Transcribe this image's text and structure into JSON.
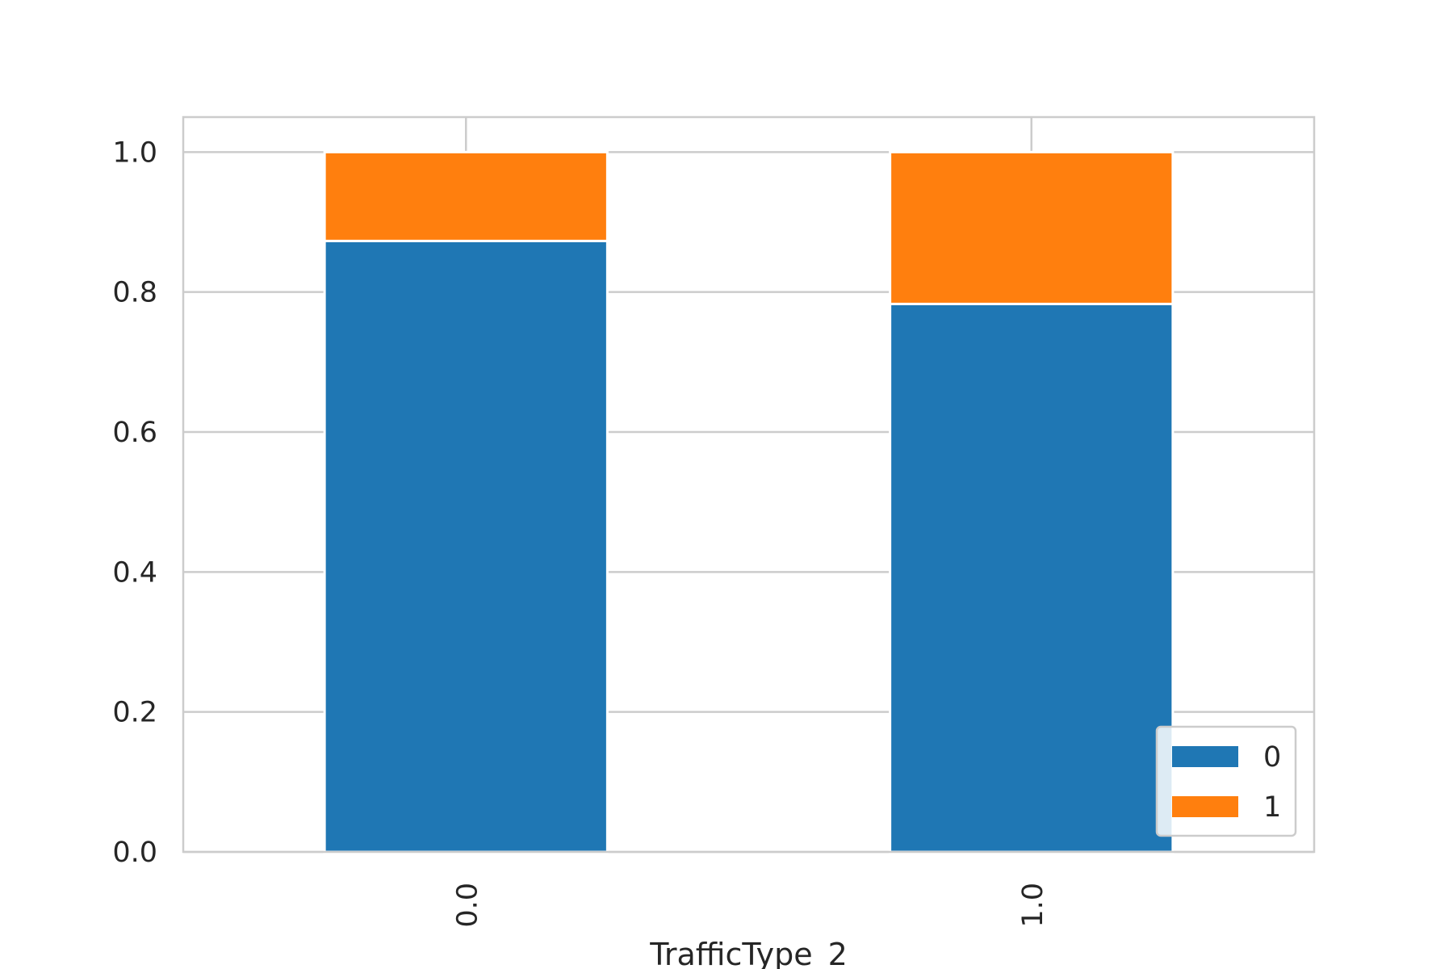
{
  "chart_data": {
    "type": "bar",
    "stacked": true,
    "categories": [
      "0.0",
      "1.0"
    ],
    "series": [
      {
        "name": "0",
        "values": [
          0.873,
          0.783
        ],
        "color": "#1f77b4"
      },
      {
        "name": "1",
        "values": [
          0.127,
          0.217
        ],
        "color": "#ff7f0e"
      }
    ],
    "title": "",
    "xlabel": "TrafficType_2",
    "ylabel": "",
    "ylim": [
      0,
      1.05
    ],
    "yticks": [
      "0.0",
      "0.2",
      "0.4",
      "0.6",
      "0.8",
      "1.0"
    ],
    "grid": true,
    "legend_position": "lower-right",
    "xtick_rotation": "vertical"
  }
}
